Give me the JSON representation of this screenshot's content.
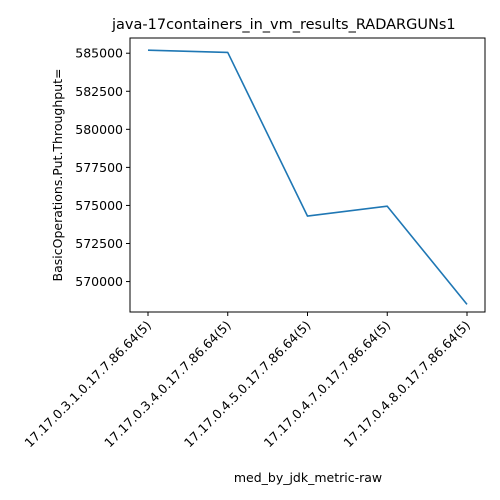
{
  "chart_data": {
    "type": "line",
    "title": "java-17containers_in_vm_results_RADARGUNs1",
    "xlabel": "med_by_jdk_metric-raw",
    "ylabel": "BasicOperations.Put.Throughput=",
    "categories": [
      "17.17.0.3.1.0.17.7.86.64(5)",
      "17.17.0.3.4.0.17.7.86.64(5)",
      "17.17.0.4.5.0.17.7.86.64(5)",
      "17.17.0.4.7.0.17.7.86.64(5)",
      "17.17.0.4.8.0.17.7.86.64(5)"
    ],
    "series": [
      {
        "values": [
          585200,
          585050,
          574300,
          574950,
          568500
        ],
        "color": "#1f77b4"
      }
    ],
    "ylim": [
      568000,
      586000
    ],
    "yticks": [
      570000,
      572500,
      575000,
      577500,
      580000,
      582500,
      585000
    ],
    "ytick_labels": [
      "570000",
      "572500",
      "575000",
      "577500",
      "580000",
      "582500",
      "585000"
    ],
    "grid": false,
    "legend": "none"
  }
}
